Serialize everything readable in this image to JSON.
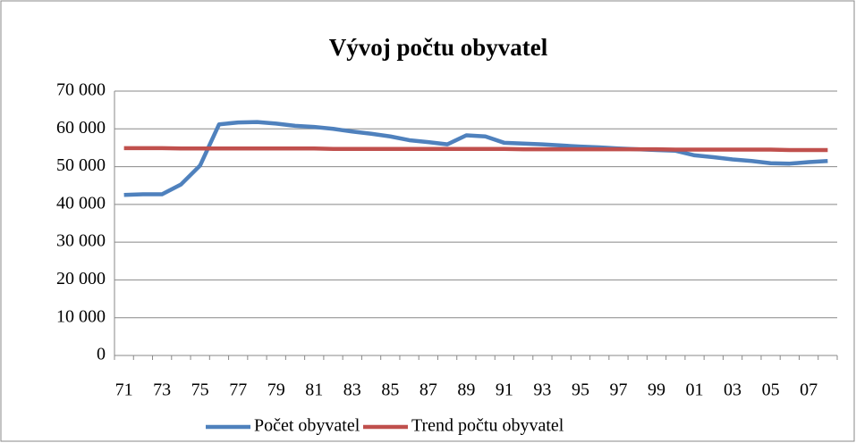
{
  "chart_data": {
    "type": "line",
    "title": "Vývoj počtu obyvatel",
    "categories": [
      "71",
      null,
      "73",
      null,
      "75",
      null,
      "77",
      null,
      "79",
      null,
      "81",
      null,
      "83",
      null,
      "85",
      null,
      "87",
      null,
      "89",
      null,
      "91",
      null,
      "93",
      null,
      "95",
      null,
      "97",
      null,
      "99",
      null,
      "01",
      null,
      "03",
      null,
      "05",
      null,
      "07",
      null
    ],
    "series": [
      {
        "name": "Počet obyvatel",
        "color": "#4f81bd",
        "values": [
          42500,
          42700,
          42700,
          45300,
          50300,
          61200,
          61700,
          61800,
          61400,
          60800,
          60500,
          60000,
          59300,
          58700,
          58000,
          57000,
          56500,
          55900,
          58300,
          58000,
          56300,
          56100,
          55900,
          55600,
          55300,
          55100,
          54800,
          54600,
          54400,
          54200,
          53000,
          52500,
          51900,
          51500,
          50900,
          50800,
          51200,
          51500
        ]
      },
      {
        "name": "Trend počtu obyvatel",
        "color": "#c0504d",
        "values": [
          54900,
          54900,
          54900,
          54800,
          54800,
          54800,
          54800,
          54800,
          54800,
          54800,
          54800,
          54700,
          54700,
          54700,
          54700,
          54700,
          54700,
          54700,
          54700,
          54700,
          54700,
          54600,
          54600,
          54600,
          54600,
          54600,
          54600,
          54600,
          54600,
          54500,
          54500,
          54500,
          54500,
          54500,
          54500,
          54400,
          54400,
          54400
        ]
      }
    ],
    "ylim": [
      0,
      70000
    ],
    "yticks": [
      0,
      {
        "value": 10000,
        "label": "10 000"
      },
      {
        "value": 20000,
        "label": "20 000"
      },
      {
        "value": 30000,
        "label": "30 000"
      },
      {
        "value": 40000,
        "label": "40 000"
      },
      {
        "value": 50000,
        "label": "50 000"
      },
      {
        "value": 60000,
        "label": "60 000"
      },
      {
        "value": 70000,
        "label": "70 000"
      }
    ],
    "grid": true,
    "legend": "bottom"
  }
}
